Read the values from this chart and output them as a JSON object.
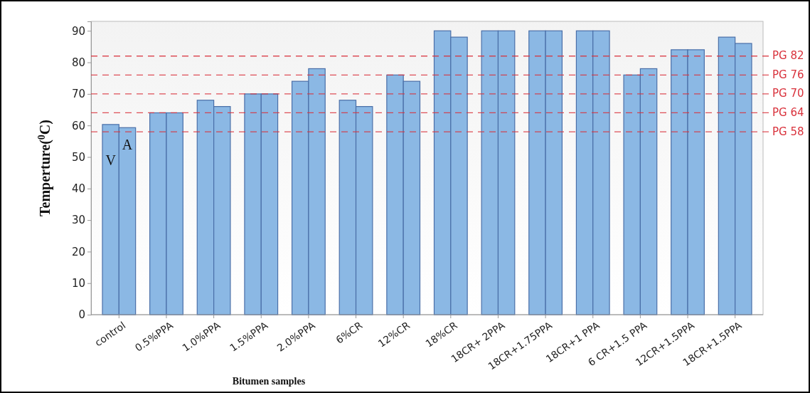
{
  "chart_data": {
    "type": "bar",
    "xlabel": "Bitumen samples",
    "ylabel": "Temperture($^{0}$C)",
    "categories": [
      "control",
      "0.5%PPA",
      "1.0%PPA",
      "1.5%PPA",
      "2.0%PPA",
      "6%CR",
      "12%CR",
      "18%CR",
      "18CR+ 2PPA",
      "18CR+1.75PPA",
      "18CR+1 PPA",
      "6 CR+1.5 PPA",
      "12CR+1.5PPA",
      "18CR+1.5PPA"
    ],
    "series": [
      {
        "color": "#8bb8e4",
        "values": [
          60.3,
          64,
          68,
          70,
          74,
          68,
          76,
          90,
          90,
          90,
          90,
          76,
          84,
          88
        ]
      },
      {
        "color": "#8bb8e4",
        "values": [
          59.3,
          64,
          66,
          70,
          78,
          66,
          74,
          88,
          90,
          90,
          90,
          78,
          84,
          86
        ]
      }
    ],
    "ylim": [
      0,
      93
    ],
    "yticks": [
      0,
      10,
      20,
      30,
      40,
      50,
      60,
      70,
      80,
      90
    ],
    "grid": false,
    "ref_lines": [
      {
        "axis": "y",
        "value": 82,
        "label": "PG 82",
        "color": "#d9323c",
        "line_style": "dashed"
      },
      {
        "axis": "y",
        "value": 76,
        "label": "PG 76",
        "color": "#d9323c",
        "line_style": "dashed"
      },
      {
        "axis": "y",
        "value": 70,
        "label": "PG 70",
        "color": "#d9323c",
        "line_style": "dashed"
      },
      {
        "axis": "y",
        "value": 64,
        "label": "PG 64",
        "color": "#d9323c",
        "line_style": "dashed"
      },
      {
        "axis": "y",
        "value": 58,
        "label": "PG 58",
        "color": "#d9323c",
        "line_style": "dashed"
      }
    ],
    "annotations": [
      {
        "text": "V",
        "x": "control",
        "y": 48.5
      },
      {
        "text": "A",
        "x": "control",
        "y": 53.5
      }
    ]
  }
}
